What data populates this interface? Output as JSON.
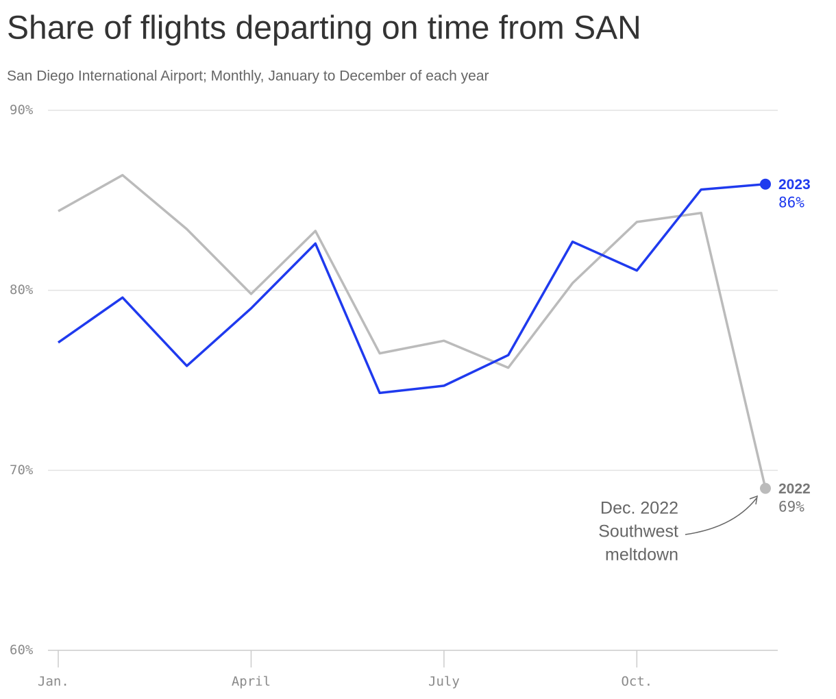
{
  "chart_data": {
    "type": "line",
    "title": "Share of flights departing on time from SAN",
    "subtitle": "San Diego International Airport; Monthly, January to December of each year",
    "categories": [
      "Jan.",
      null,
      null,
      "April",
      null,
      null,
      "July",
      null,
      null,
      "Oct.",
      null,
      null
    ],
    "series": [
      {
        "name": "2023",
        "color": "#1f3aee",
        "values": [
          77.1,
          79.6,
          75.8,
          79.0,
          82.6,
          74.3,
          74.7,
          76.4,
          82.7,
          81.1,
          85.6,
          85.9
        ],
        "value_labels": [
          null,
          null,
          null,
          null,
          null,
          null,
          null,
          null,
          null,
          null,
          null,
          "86%"
        ]
      },
      {
        "name": "2022",
        "color": "#bbbbbb",
        "values": [
          84.4,
          86.4,
          83.4,
          79.8,
          83.3,
          76.5,
          77.2,
          75.7,
          80.4,
          83.8,
          84.3,
          69.0
        ],
        "value_labels": [
          null,
          null,
          null,
          null,
          null,
          null,
          null,
          null,
          null,
          null,
          null,
          "69%"
        ]
      }
    ],
    "ylim": [
      60,
      90
    ],
    "yticks": [
      {
        "value": 60,
        "label": "60%"
      },
      {
        "value": 70,
        "label": "70%"
      },
      {
        "value": 80,
        "label": "80%"
      },
      {
        "value": 90,
        "label": "90%"
      }
    ],
    "grid": true,
    "annotation": {
      "lines": [
        "Dec. 2022",
        "Southwest",
        "meltdown"
      ]
    }
  }
}
